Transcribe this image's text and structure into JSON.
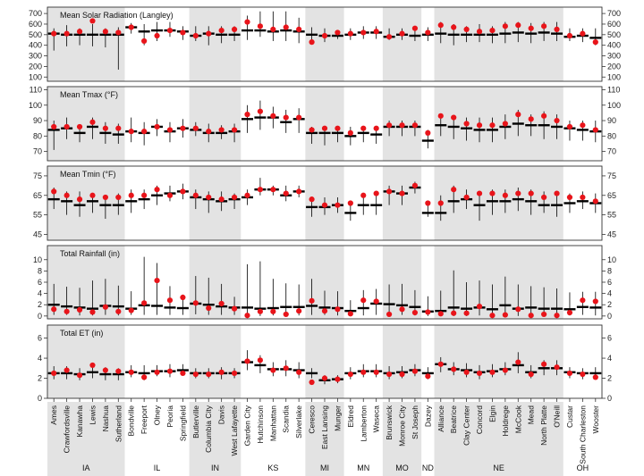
{
  "chart_data": {
    "type": "scatter",
    "sites": [
      "Ames",
      "Crawfordsville",
      "Kanawha",
      "Lewis",
      "Nashua",
      "Sutherland",
      "Bondville",
      "Freeport",
      "Olney",
      "Peoria",
      "Springfield",
      "Butlerville",
      "Columbia City",
      "Davis",
      "West Lafayette",
      "Garden City",
      "Hutchinson",
      "Manhattan",
      "Scandia",
      "Silverlake",
      "Ceresco",
      "East Lansing",
      "Munger",
      "Eldred",
      "Lamberton",
      "Waseca",
      "Brunswick",
      "Monroe City",
      "St Joseph",
      "Dazey",
      "Alliance",
      "Beatrice",
      "Clay Center",
      "Concord",
      "Elgin",
      "Holdrege",
      "McCook",
      "Mead",
      "North Platte",
      "O'Neill",
      "Custar",
      "South Charleston",
      "Wooster"
    ],
    "states": [
      {
        "name": "IA",
        "count": 6,
        "shaded": true
      },
      {
        "name": "IL",
        "count": 5,
        "shaded": false
      },
      {
        "name": "IN",
        "count": 4,
        "shaded": true
      },
      {
        "name": "KS",
        "count": 5,
        "shaded": false
      },
      {
        "name": "MI",
        "count": 3,
        "shaded": true
      },
      {
        "name": "MN",
        "count": 3,
        "shaded": false
      },
      {
        "name": "MO",
        "count": 3,
        "shaded": true
      },
      {
        "name": "ND",
        "count": 1,
        "shaded": false
      },
      {
        "name": "NE",
        "count": 10,
        "shaded": true
      },
      {
        "name": "OH",
        "count": 3,
        "shaded": false
      }
    ],
    "panels": [
      {
        "title": "Mean Solar Radiation (Langley)",
        "ylim": [
          60,
          760
        ],
        "ticks": [
          100,
          200,
          300,
          400,
          500,
          600,
          700
        ],
        "mean": [
          510,
          500,
          500,
          500,
          500,
          500,
          570,
          530,
          540,
          540,
          530,
          490,
          510,
          500,
          500,
          540,
          540,
          530,
          540,
          530,
          500,
          490,
          490,
          500,
          520,
          520,
          480,
          500,
          490,
          500,
          510,
          500,
          500,
          500,
          500,
          510,
          520,
          510,
          520,
          510,
          480,
          490,
          470
        ],
        "min": [
          350,
          390,
          400,
          390,
          380,
          170,
          510,
          400,
          440,
          480,
          450,
          440,
          400,
          420,
          440,
          450,
          480,
          440,
          440,
          420,
          450,
          430,
          460,
          450,
          460,
          460,
          450,
          450,
          440,
          440,
          420,
          400,
          430,
          430,
          420,
          420,
          430,
          420,
          440,
          440,
          440,
          430,
          400
        ],
        "max": [
          560,
          590,
          560,
          600,
          560,
          570,
          610,
          600,
          620,
          620,
          580,
          580,
          580,
          580,
          580,
          680,
          720,
          720,
          720,
          660,
          570,
          560,
          540,
          560,
          580,
          580,
          560,
          560,
          570,
          570,
          620,
          600,
          580,
          600,
          580,
          620,
          620,
          610,
          620,
          620,
          560,
          560,
          560
        ],
        "observed": [
          510,
          510,
          530,
          630,
          530,
          520,
          570,
          440,
          490,
          540,
          520,
          490,
          510,
          540,
          550,
          620,
          580,
          550,
          570,
          550,
          430,
          490,
          520,
          510,
          520,
          530,
          480,
          510,
          560,
          520,
          590,
          570,
          550,
          530,
          540,
          580,
          590,
          560,
          580,
          550,
          490,
          510,
          430
        ]
      },
      {
        "title": "Mean Tmax (°F)",
        "ylim": [
          64,
          112
        ],
        "ticks": [
          70,
          80,
          90,
          100,
          110
        ],
        "mean": [
          84,
          85,
          82,
          86,
          82,
          81,
          83,
          82,
          86,
          83,
          85,
          84,
          82,
          82,
          83,
          91,
          92,
          92,
          89,
          91,
          82,
          82,
          82,
          80,
          82,
          81,
          86,
          86,
          86,
          77,
          87,
          86,
          85,
          84,
          84,
          86,
          88,
          87,
          87,
          86,
          85,
          84,
          83
        ],
        "min": [
          71,
          78,
          76,
          78,
          75,
          75,
          76,
          74,
          80,
          76,
          79,
          80,
          76,
          78,
          76,
          82,
          84,
          85,
          82,
          82,
          75,
          74,
          76,
          74,
          76,
          75,
          80,
          80,
          80,
          72,
          80,
          78,
          77,
          76,
          76,
          78,
          80,
          80,
          78,
          78,
          77,
          77,
          76
        ],
        "max": [
          90,
          92,
          87,
          92,
          89,
          88,
          92,
          89,
          91,
          89,
          91,
          89,
          88,
          87,
          88,
          100,
          103,
          99,
          97,
          98,
          86,
          86,
          86,
          86,
          86,
          86,
          90,
          90,
          90,
          84,
          92,
          92,
          92,
          92,
          92,
          94,
          97,
          94,
          96,
          94,
          90,
          90,
          90
        ],
        "observed": [
          86,
          86,
          86,
          89,
          85,
          85,
          83,
          83,
          86,
          84,
          85,
          85,
          83,
          84,
          84,
          94,
          96,
          93,
          92,
          92,
          84,
          85,
          85,
          82,
          85,
          85,
          87,
          87,
          87,
          82,
          93,
          92,
          88,
          87,
          87,
          88,
          94,
          91,
          93,
          90,
          86,
          87,
          84
        ]
      },
      {
        "title": "Mean Tmin (°F)",
        "ylim": [
          42,
          80
        ],
        "ticks": [
          45,
          55,
          65,
          75
        ],
        "mean": [
          63,
          62,
          60,
          62,
          60,
          60,
          62,
          63,
          65,
          66,
          67,
          64,
          63,
          62,
          63,
          64,
          68,
          68,
          65,
          67,
          59,
          59,
          60,
          56,
          60,
          60,
          67,
          66,
          69,
          56,
          56,
          62,
          63,
          60,
          62,
          62,
          63,
          62,
          60,
          60,
          61,
          62,
          61
        ],
        "min": [
          58,
          55,
          54,
          56,
          53,
          55,
          56,
          58,
          60,
          62,
          63,
          58,
          56,
          57,
          58,
          60,
          65,
          65,
          62,
          64,
          54,
          55,
          56,
          52,
          55,
          55,
          60,
          60,
          66,
          54,
          52,
          56,
          58,
          52,
          55,
          56,
          57,
          55,
          56,
          54,
          56,
          58,
          56
        ],
        "max": [
          69,
          67,
          67,
          66,
          65,
          66,
          68,
          68,
          70,
          70,
          71,
          68,
          67,
          67,
          66,
          68,
          74,
          70,
          70,
          70,
          64,
          64,
          64,
          62,
          65,
          65,
          70,
          70,
          72,
          61,
          65,
          70,
          68,
          67,
          68,
          68,
          69,
          68,
          67,
          67,
          66,
          67,
          66
        ],
        "observed": [
          67,
          65,
          63,
          65,
          64,
          64,
          65,
          65,
          68,
          65,
          67,
          65,
          64,
          63,
          64,
          65,
          68,
          68,
          66,
          67,
          63,
          60,
          60,
          61,
          65,
          66,
          67,
          66,
          70,
          61,
          61,
          68,
          64,
          66,
          66,
          65,
          66,
          66,
          64,
          66,
          64,
          64,
          62
        ]
      },
      {
        "title": "Total Rainfall (in)",
        "ylim": [
          -0.5,
          12.5
        ],
        "ticks": [
          0,
          2,
          4,
          6,
          8,
          10
        ],
        "mean": [
          2.0,
          1.7,
          1.5,
          1.3,
          1.8,
          1.7,
          1.3,
          1.9,
          1.8,
          1.5,
          1.4,
          2.2,
          2.0,
          1.7,
          1.5,
          1.5,
          1.3,
          1.4,
          1.6,
          1.6,
          1.8,
          1.5,
          1.4,
          0.9,
          1.4,
          2.2,
          2.1,
          1.9,
          1.6,
          0.8,
          0.9,
          1.5,
          1.3,
          1.5,
          1.2,
          1.9,
          1.3,
          1.5,
          1.3,
          1.3,
          1.2,
          1.6,
          1.5
        ],
        "min": [
          0.2,
          0.2,
          0.1,
          0.1,
          0.2,
          0.1,
          0.2,
          0.2,
          0.2,
          0.2,
          0.2,
          0.3,
          0.2,
          0.2,
          0.2,
          0.0,
          0.0,
          0.1,
          0.1,
          0.1,
          0.2,
          0.2,
          0.1,
          0.0,
          0.1,
          0.2,
          0.2,
          0.2,
          0.1,
          0.0,
          0.0,
          0.0,
          0.0,
          0.1,
          0.0,
          0.0,
          0.0,
          0.0,
          0.0,
          0.0,
          0.1,
          0.2,
          0.1
        ],
        "max": [
          5.7,
          5.2,
          5.0,
          6.3,
          6.6,
          5.4,
          4.4,
          10.5,
          9.4,
          5.3,
          3.8,
          7.1,
          6.8,
          5.7,
          3.4,
          9.2,
          9.7,
          6.6,
          5.8,
          5.6,
          6.6,
          4.5,
          4.4,
          2.8,
          4.6,
          4.8,
          5.6,
          5.7,
          4.6,
          3.5,
          4.5,
          8.1,
          6.0,
          6.3,
          5.6,
          7.0,
          5.6,
          5.3,
          5.1,
          4.9,
          4.2,
          4.3,
          4.3
        ],
        "observed": [
          1.2,
          0.8,
          1.1,
          0.7,
          1.6,
          0.8,
          1.0,
          2.3,
          6.3,
          2.8,
          3.3,
          2.3,
          1.4,
          2.2,
          1.3,
          0.1,
          0.8,
          0.8,
          0.3,
          0.9,
          2.7,
          0.9,
          1.2,
          0.4,
          2.8,
          2.6,
          0.3,
          1.2,
          0.6,
          0.7,
          0.4,
          0.5,
          0.5,
          1.7,
          0.1,
          0.2,
          1.2,
          0.1,
          0.3,
          0.1,
          0.6,
          2.8,
          2.6
        ]
      },
      {
        "title": "Total ET (in)",
        "ylim": [
          0,
          7.3
        ],
        "ticks": [
          0,
          2,
          4,
          6
        ],
        "mean": [
          2.5,
          2.5,
          2.4,
          2.6,
          2.4,
          2.4,
          2.6,
          2.5,
          2.7,
          2.7,
          2.8,
          2.5,
          2.5,
          2.5,
          2.5,
          3.6,
          3.3,
          2.9,
          2.9,
          2.8,
          2.5,
          1.8,
          1.9,
          2.5,
          2.7,
          2.7,
          2.5,
          2.6,
          2.8,
          2.5,
          3.4,
          2.9,
          2.8,
          2.6,
          2.7,
          2.9,
          3.3,
          2.6,
          3.0,
          3.0,
          2.6,
          2.5,
          2.5
        ],
        "min": [
          1.9,
          1.9,
          1.8,
          2.0,
          1.8,
          1.8,
          2.1,
          1.8,
          2.2,
          2.1,
          2.3,
          2.0,
          2.0,
          1.9,
          2.0,
          2.8,
          2.5,
          2.2,
          2.2,
          2.0,
          2.0,
          1.4,
          1.5,
          1.9,
          2.1,
          2.1,
          1.9,
          2.0,
          2.2,
          1.9,
          2.6,
          2.3,
          2.1,
          1.9,
          2.1,
          2.3,
          2.5,
          2.0,
          2.3,
          2.3,
          2.0,
          1.9,
          1.9
        ],
        "max": [
          3.2,
          3.2,
          3.0,
          3.5,
          3.1,
          3.0,
          3.3,
          3.3,
          3.3,
          3.4,
          3.4,
          3.0,
          3.0,
          3.1,
          3.0,
          4.8,
          4.3,
          3.6,
          3.8,
          3.6,
          3.0,
          2.3,
          2.3,
          3.1,
          3.4,
          3.4,
          3.2,
          3.2,
          3.4,
          3.1,
          4.1,
          3.6,
          3.5,
          3.3,
          3.4,
          3.6,
          4.6,
          3.3,
          3.8,
          3.8,
          3.1,
          3.0,
          3.1
        ],
        "observed": [
          2.5,
          2.8,
          2.3,
          3.3,
          2.8,
          2.7,
          2.6,
          2.1,
          2.6,
          2.7,
          2.5,
          2.4,
          2.4,
          2.6,
          2.5,
          3.7,
          3.8,
          2.8,
          3.0,
          2.6,
          1.6,
          2.0,
          1.9,
          2.4,
          2.6,
          2.6,
          2.4,
          2.4,
          2.7,
          2.2,
          3.4,
          2.9,
          2.6,
          2.5,
          2.6,
          2.8,
          3.6,
          2.4,
          3.4,
          3.1,
          2.5,
          2.4,
          2.1
        ]
      }
    ],
    "colors": {
      "observed": "#e8141a",
      "mean": "#000000",
      "range": "#000000",
      "shade": "#e3e3e3"
    }
  }
}
